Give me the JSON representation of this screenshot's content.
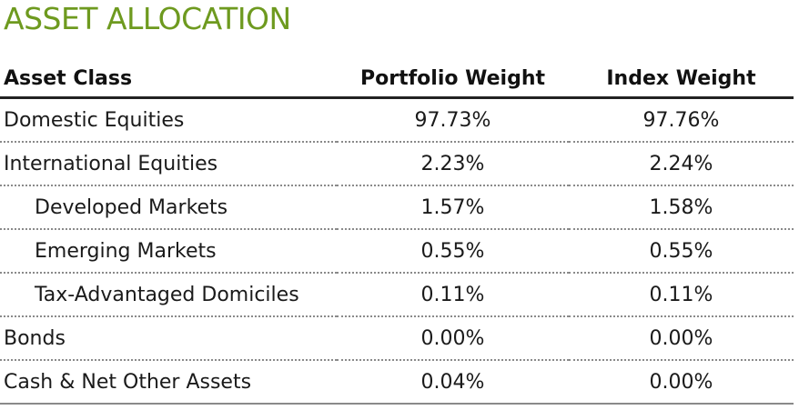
{
  "title": "ASSET ALLOCATION",
  "colors": {
    "title": "#6e9a1f",
    "header_rule": "#222222",
    "row_rule": "#8a8a8a"
  },
  "table": {
    "headers": [
      "Asset Class",
      "Portfolio Weight",
      "Index Weight"
    ],
    "rows": [
      {
        "label": "Domestic Equities",
        "portfolio": "97.73%",
        "index": "97.76%",
        "indent": false
      },
      {
        "label": "International Equities",
        "portfolio": "2.23%",
        "index": "2.24%",
        "indent": false
      },
      {
        "label": "Developed Markets",
        "portfolio": "1.57%",
        "index": "1.58%",
        "indent": true
      },
      {
        "label": "Emerging Markets",
        "portfolio": "0.55%",
        "index": "0.55%",
        "indent": true
      },
      {
        "label": "Tax-Advantaged Domiciles",
        "portfolio": "0.11%",
        "index": "0.11%",
        "indent": true
      },
      {
        "label": "Bonds",
        "portfolio": "0.00%",
        "index": "0.00%",
        "indent": false
      },
      {
        "label": "Cash & Net Other Assets",
        "portfolio": "0.04%",
        "index": "0.00%",
        "indent": false
      }
    ]
  }
}
